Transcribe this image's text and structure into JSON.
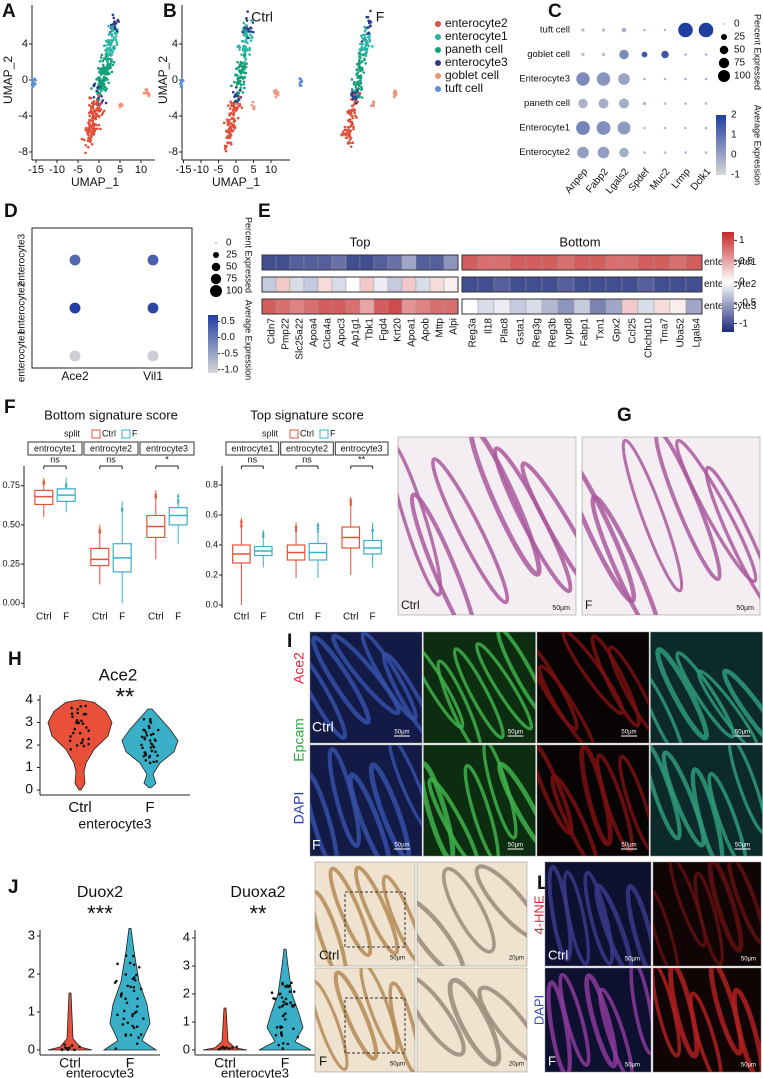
{
  "A": {
    "label": "A",
    "y_title": "UMAP_2",
    "x_title": "UMAP_1",
    "yticks": [
      4,
      0,
      -4,
      -8
    ],
    "xticks": [
      -15,
      -10,
      -5,
      0,
      5,
      10
    ]
  },
  "B": {
    "label": "B",
    "groups": [
      "Ctrl",
      "F"
    ],
    "y_title": "UMAP_2",
    "x_title": "UMAP_1",
    "yticks": [
      4,
      0,
      -4,
      -8
    ],
    "xticks": [
      -15,
      -10,
      -5,
      0,
      5,
      10
    ],
    "legend": [
      {
        "name": "enterocyte2",
        "color": "#e0503a"
      },
      {
        "name": "enterocyte1",
        "color": "#2bb5a6"
      },
      {
        "name": "paneth cell",
        "color": "#139f78"
      },
      {
        "name": "enterocyte3",
        "color": "#2a3a8c"
      },
      {
        "name": "goblet cell",
        "color": "#f0917a"
      },
      {
        "name": "tuft cell",
        "color": "#5a8fd4"
      }
    ]
  },
  "C": {
    "label": "C",
    "rows": [
      "tuft cell",
      "goblet cell",
      "Enterocyte3",
      "paneth cell",
      "Enterocyte1",
      "Enterocyte2"
    ],
    "genes": [
      "Anpep",
      "Fabp2",
      "Lgals2",
      "Spdef",
      "Muc2",
      "Lrmp",
      "Dclk1"
    ],
    "pct": [
      [
        5,
        5,
        10,
        3,
        3,
        95,
        95
      ],
      [
        5,
        5,
        40,
        15,
        25,
        3,
        3
      ],
      [
        80,
        80,
        60,
        3,
        3,
        3,
        3
      ],
      [
        40,
        45,
        45,
        5,
        3,
        3,
        3
      ],
      [
        85,
        85,
        75,
        3,
        3,
        3,
        3
      ],
      [
        60,
        60,
        40,
        3,
        3,
        3,
        3
      ]
    ],
    "avg": [
      [
        -0.5,
        -0.5,
        -0.3,
        -0.3,
        -0.4,
        2,
        2
      ],
      [
        -0.5,
        -0.5,
        0.5,
        1.5,
        1.5,
        -0.3,
        -0.3
      ],
      [
        0.5,
        0.3,
        0,
        -0.3,
        -0.3,
        -0.3,
        -0.3
      ],
      [
        -0.3,
        -0.2,
        -0.2,
        -0.4,
        -0.4,
        -0.3,
        -0.3
      ],
      [
        0.6,
        0.4,
        0.2,
        -0.4,
        -0.4,
        -0.3,
        -0.3
      ],
      [
        0.1,
        0.1,
        -0.2,
        -0.4,
        -0.4,
        -0.3,
        -0.3
      ]
    ],
    "size_title": "Percent Expressed",
    "size_ticks": [
      0,
      25,
      50,
      75,
      100
    ],
    "color_title": "Average Expression",
    "color_ticks": [
      2,
      1,
      0,
      -1
    ],
    "color_range": [
      -1,
      2
    ]
  },
  "D": {
    "label": "D",
    "rows": [
      "enterocyte1",
      "enterocyte2",
      "enterocyte3"
    ],
    "genes": [
      "Ace2",
      "Vil1"
    ],
    "pct": [
      [
        60,
        60
      ],
      [
        60,
        60
      ],
      [
        60,
        60
      ]
    ],
    "avg": [
      [
        -1,
        -1
      ],
      [
        0.7,
        0.6
      ],
      [
        0.2,
        0.3
      ]
    ],
    "size_title": "Percent Expressed",
    "size_ticks": [
      0,
      25,
      50,
      75,
      100
    ],
    "color_title": "Average Expression",
    "color_ticks": [
      0.5,
      {
        "value": 0,
        "label": "0.0"
      },
      -0.5,
      {
        "value": -1,
        "label": "-1.0"
      }
    ],
    "color_range": [
      -1.1,
      0.7
    ]
  },
  "E": {
    "label": "E",
    "groups": [
      "Top",
      "Bottom"
    ],
    "top_genes": [
      "Cldn7",
      "Pmp22",
      "Slc25a22",
      "Apoa4",
      "Clca4a",
      "Apoc3",
      "Ap1g1",
      "Tbk1",
      "Fgd4",
      "Krt20",
      "Apoa1",
      "Apob",
      "Mttp",
      "Alpi"
    ],
    "bottom_genes": [
      "Reg3a",
      "Il18",
      "Plac8",
      "Gsta1",
      "Reg3g",
      "Reg3b",
      "Lypd8",
      "Fabp1",
      "Txn1",
      "Gpx2",
      "Ccl25",
      "Chchd10",
      "Tma7",
      "Uba52",
      "Lgals4"
    ],
    "rows": [
      "enterocyte1",
      "enterocyte2",
      "enterocyte3"
    ],
    "top_values": [
      [
        -1,
        -1,
        -0.9,
        -0.9,
        -0.9,
        -0.8,
        -1,
        -1,
        -0.9,
        -0.8,
        -0.5,
        -0.9,
        -0.9,
        -0.6
      ],
      [
        -0.3,
        0.3,
        -0.2,
        -0.3,
        0.2,
        -0.2,
        0,
        0.3,
        -0.1,
        -0.3,
        0.3,
        -0.2,
        0.2,
        0.1
      ],
      [
        0.9,
        0.8,
        0.7,
        0.8,
        0.9,
        0.9,
        0.8,
        0.5,
        0.9,
        1,
        0.6,
        0.7,
        0.8,
        0.8
      ]
    ],
    "bottom_values": [
      [
        0.9,
        0.8,
        0.8,
        0.9,
        0.9,
        0.9,
        0.8,
        0.9,
        0.9,
        0.8,
        0.8,
        0.9,
        0.9,
        0.8,
        0.9
      ],
      [
        -1,
        -1,
        -0.9,
        -1,
        -1,
        -1,
        -0.9,
        -1,
        -1,
        -1,
        -1,
        -0.9,
        -1,
        -1,
        -1
      ],
      [
        0,
        -0.2,
        -0.1,
        -0.3,
        -0.2,
        -0.4,
        -0.6,
        -0.3,
        -0.7,
        -0.5,
        0.3,
        -0.2,
        0.2,
        0.1,
        -0.5
      ]
    ],
    "color_ticks": [
      1,
      0.5,
      0,
      -0.5,
      -1
    ],
    "color_range": [
      -1.2,
      1.2
    ]
  },
  "F": {
    "label": "F",
    "colors": [
      "#e8503a",
      "#3ab0c8"
    ],
    "split": "split",
    "legend": [
      "Ctrl",
      "F"
    ],
    "groups": [
      "Ctrl",
      "F"
    ],
    "plots": [
      {
        "title": "Bottom signature score",
        "facets": [
          "entrocyte1",
          "entrocyte2",
          "entrocyte3"
        ],
        "signif": [
          "ns",
          "ns",
          "*"
        ],
        "ylim": [
          -0.03,
          0.85
        ],
        "yticks": [
          {
            "value": 0,
            "label": "0.00"
          },
          0.25,
          {
            "value": 0.5,
            "label": "0.50"
          },
          0.75
        ],
        "boxes": [
          [
            0.63,
            0.68,
            0.72,
            0.55,
            0.8
          ],
          [
            0.65,
            0.69,
            0.73,
            0.58,
            0.8
          ],
          [
            0.24,
            0.28,
            0.35,
            0.12,
            0.5
          ],
          [
            0.2,
            0.29,
            0.38,
            0,
            0.65
          ],
          [
            0.42,
            0.49,
            0.56,
            0.28,
            0.72
          ],
          [
            0.5,
            0.56,
            0.61,
            0.38,
            0.7
          ]
        ]
      },
      {
        "title": "Top signature score",
        "facets": [
          "entrocyte1",
          "entrocyte2",
          "entrocyte3"
        ],
        "signif": [
          "ns",
          "ns",
          "**"
        ],
        "ylim": [
          -0.02,
          0.9
        ],
        "yticks": [
          {
            "value": 0,
            "label": "0.0"
          },
          0.2,
          0.4,
          0.6,
          0.8
        ],
        "boxes": [
          [
            0.28,
            0.34,
            0.4,
            0,
            0.58
          ],
          [
            0.33,
            0.36,
            0.39,
            0.25,
            0.5
          ],
          [
            0.3,
            0.35,
            0.4,
            0.18,
            0.55
          ],
          [
            0.3,
            0.35,
            0.41,
            0.18,
            0.55
          ],
          [
            0.38,
            0.45,
            0.52,
            0.2,
            0.72
          ],
          [
            0.34,
            0.38,
            0.43,
            0.25,
            0.55
          ]
        ]
      }
    ]
  },
  "G": {
    "label": "G",
    "groups": [
      "Ctrl",
      "F"
    ],
    "scale": "50µm"
  },
  "H": {
    "label": "H",
    "title": "Ace2",
    "signif": "**",
    "yticks": [
      0,
      1,
      2,
      3,
      4
    ],
    "groups": [
      "Ctrl",
      "F"
    ],
    "x_title": "enterocyte3"
  },
  "I": {
    "label": "I",
    "stains": [
      "Ace2",
      "Epcam",
      "DAPI"
    ],
    "groups": [
      "Ctrl",
      "F"
    ],
    "scale": "50µm"
  },
  "J": {
    "label": "J",
    "groups": [
      "Ctrl",
      "F"
    ],
    "x_title": "enterocyte3",
    "plots": [
      {
        "title": "Duox2",
        "signif": "***",
        "yticks": [
          0,
          1,
          2,
          3
        ]
      },
      {
        "title": "Duoxa2",
        "signif": "**",
        "yticks": [
          0,
          1,
          2,
          3,
          4
        ]
      }
    ]
  },
  "K": {
    "label": "K",
    "groups": [
      "Ctrl",
      "F"
    ],
    "scales": [
      "50µm",
      "20µm"
    ]
  },
  "L": {
    "label": "L",
    "stains": [
      "4-HNE",
      "DAPI"
    ],
    "groups": [
      "Ctrl",
      "F"
    ],
    "scale": "50µm"
  }
}
